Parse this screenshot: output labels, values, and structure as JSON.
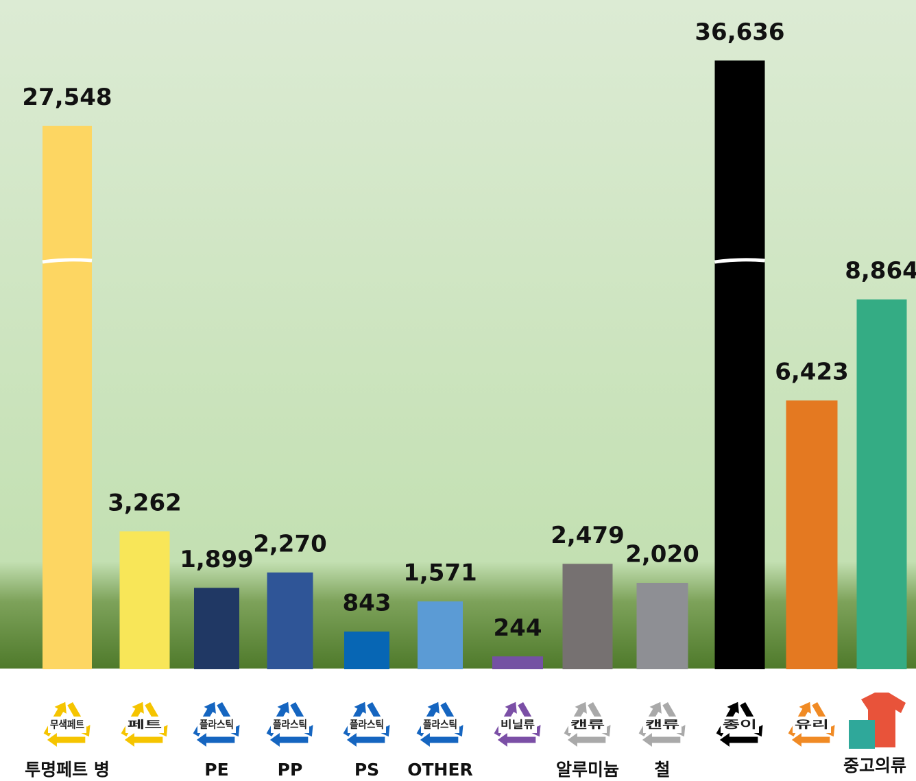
{
  "chart_data": {
    "type": "bar",
    "categories": [
      "투명페트 병",
      null,
      "PE",
      "PP",
      "PS",
      "OTHER",
      null,
      "알루미늄",
      "철",
      null,
      null,
      "중고의류"
    ],
    "values": [
      27548,
      3262,
      1899,
      2270,
      843,
      1571,
      244,
      2479,
      2020,
      36636,
      6423,
      8864
    ],
    "value_labels": [
      "27,548",
      "3,262",
      "1,899",
      "2,270",
      "843",
      "1,571",
      "244",
      "2,479",
      "2,020",
      "36,636",
      "6,423",
      "8,864"
    ],
    "colors": [
      "#fdd662",
      "#f8e658",
      "#203864",
      "#2f5597",
      "#0766b4",
      "#5b9bd5",
      "#7451a3",
      "#767171",
      "#8e8f94",
      "#000000",
      "#e47921",
      "#34ac84"
    ],
    "icon_labels": [
      "무색페트",
      "페트",
      "플라스틱",
      "플라스틱",
      "플라스틱",
      "플라스틱",
      "비닐류",
      "캔류",
      "캔류",
      "종이",
      "유리",
      null
    ],
    "icon_colors": [
      "#f5c400",
      "#f5c400",
      "#1565c0",
      "#1565c0",
      "#1565c0",
      "#1565c0",
      "#7b4fa6",
      "#a9a9a9",
      "#a9a9a9",
      "#000000",
      "#f08a24",
      "#e8533a"
    ],
    "ylim": [
      0,
      10000
    ]
  }
}
